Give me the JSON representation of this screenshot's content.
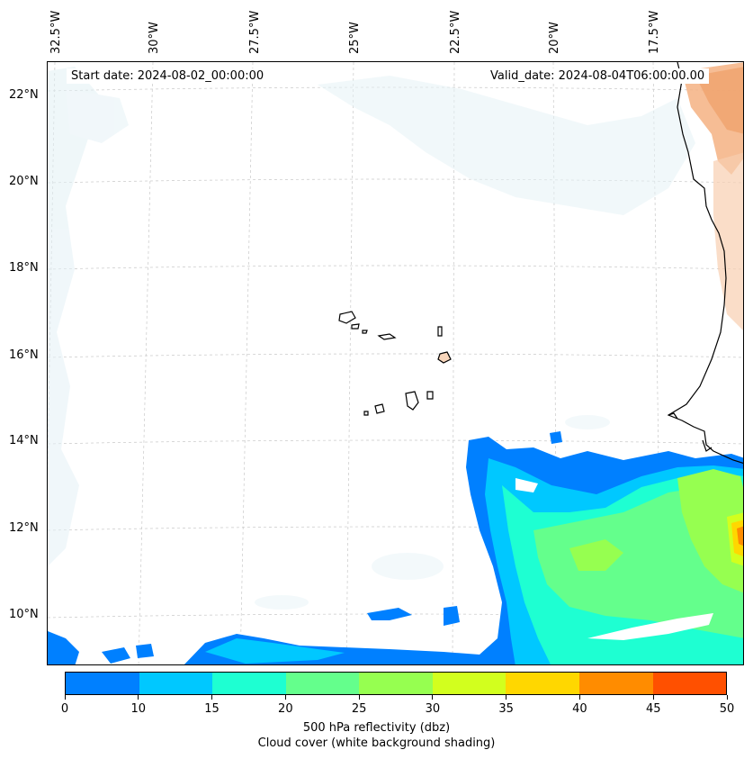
{
  "map": {
    "start_label": "Start date: 2024-08-02_00:00:00",
    "valid_label": "Valid_date: 2024-08-04T06:00:00.00",
    "lon_labels": [
      "32.5°W",
      "30°W",
      "27.5°W",
      "25°W",
      "22.5°W",
      "20°W",
      "17.5°W"
    ],
    "lat_labels": [
      "22°N",
      "20°N",
      "18°N",
      "16°N",
      "14°N",
      "12°N",
      "10°N"
    ],
    "colors": {
      "cloud_blue": "#d9ecf2",
      "cloud_orange": "#f4b183",
      "coastline": "#000000",
      "gridline": "#c8c8c8"
    }
  },
  "colorbar": {
    "ticks": [
      "0",
      "10",
      "15",
      "20",
      "25",
      "30",
      "35",
      "40",
      "45",
      "50"
    ],
    "colors": [
      "#0080ff",
      "#00c8ff",
      "#1effd2",
      "#64ff8c",
      "#96ff50",
      "#d2ff1e",
      "#ffd700",
      "#ff8c00",
      "#ff5000"
    ],
    "label_line1": "500 hPa reflectivity (dbz)",
    "label_line2": "Cloud cover (white background shading)"
  }
}
